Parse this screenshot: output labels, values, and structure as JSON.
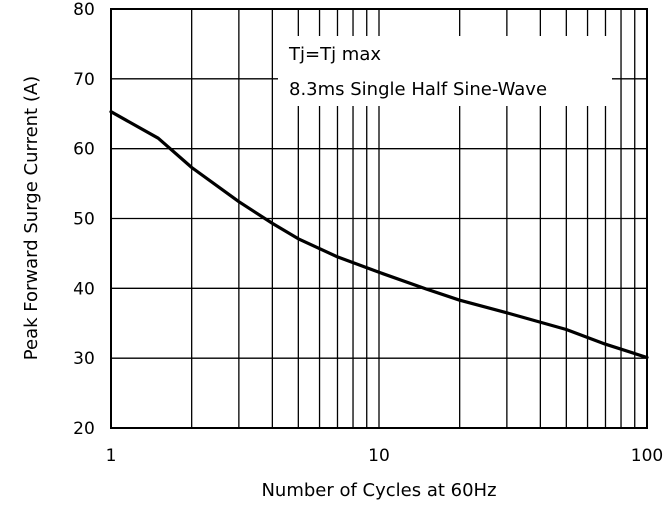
{
  "chart_data": {
    "type": "line",
    "title": "",
    "xlabel": "Number of Cycles at 60Hz",
    "ylabel": "Peak Forward Surge Current (A)",
    "x_scale": "log",
    "y_scale": "linear",
    "xlim": [
      1,
      100
    ],
    "ylim": [
      20,
      80
    ],
    "x_ticks": [
      {
        "value": 1,
        "label": "1"
      },
      {
        "value": 10,
        "label": "10"
      },
      {
        "value": 100,
        "label": "100"
      }
    ],
    "y_ticks": [
      {
        "value": 20,
        "label": "20"
      },
      {
        "value": 30,
        "label": "30"
      },
      {
        "value": 40,
        "label": "40"
      },
      {
        "value": 50,
        "label": "50"
      },
      {
        "value": 60,
        "label": "60"
      },
      {
        "value": 70,
        "label": "70"
      },
      {
        "value": 80,
        "label": "80"
      }
    ],
    "grid": {
      "x_minor": true,
      "y_major": true
    },
    "annotations": [
      "Tj=Tj max",
      "8.3ms Single Half Sine-Wave"
    ],
    "series": [
      {
        "name": "",
        "color": "#000000",
        "x": [
          1,
          1.5,
          2,
          3,
          4,
          5,
          7,
          10,
          15,
          20,
          30,
          50,
          70,
          100
        ],
        "y": [
          65.3,
          61.5,
          57.3,
          52.4,
          49.3,
          47.1,
          44.5,
          42.3,
          39.9,
          38.3,
          36.5,
          34.1,
          32.0,
          30.1
        ]
      }
    ]
  }
}
